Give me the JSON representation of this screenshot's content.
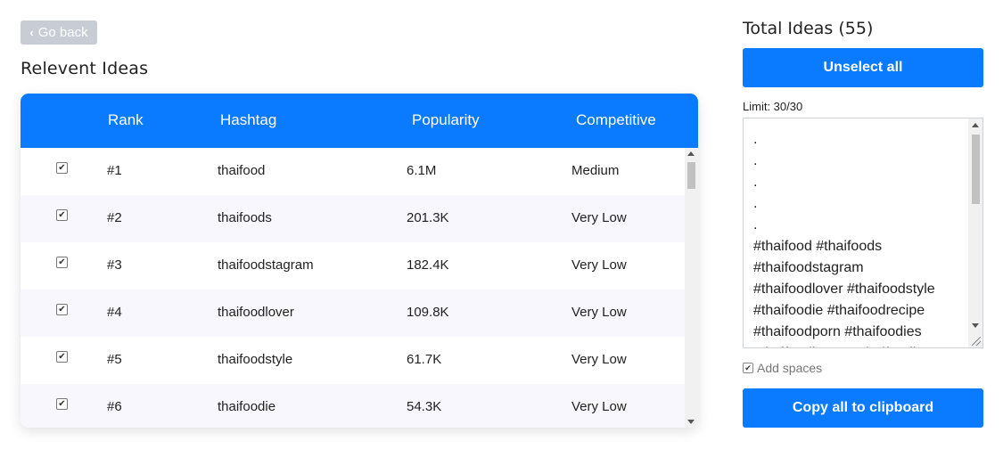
{
  "nav": {
    "go_back_label": "Go back"
  },
  "section_title": "Relevent Ideas",
  "table": {
    "columns": [
      "Rank",
      "Hashtag",
      "Popularity",
      "Competitive"
    ],
    "rows": [
      {
        "checked": true,
        "rank": "#1",
        "hashtag": "thaifood",
        "popularity": "6.1M",
        "competitive": "Medium"
      },
      {
        "checked": true,
        "rank": "#2",
        "hashtag": "thaifoods",
        "popularity": "201.3K",
        "competitive": "Very Low"
      },
      {
        "checked": true,
        "rank": "#3",
        "hashtag": "thaifoodstagram",
        "popularity": "182.4K",
        "competitive": "Very Low"
      },
      {
        "checked": true,
        "rank": "#4",
        "hashtag": "thaifoodlover",
        "popularity": "109.8K",
        "competitive": "Very Low"
      },
      {
        "checked": true,
        "rank": "#5",
        "hashtag": "thaifoodstyle",
        "popularity": "61.7K",
        "competitive": "Very Low"
      },
      {
        "checked": true,
        "rank": "#6",
        "hashtag": "thaifoodie",
        "popularity": "54.3K",
        "competitive": "Very Low"
      }
    ]
  },
  "sidebar": {
    "total_title": "Total Ideas (55)",
    "unselect_label": "Unselect all",
    "limit_label": "Limit: 30/30",
    "hashtags_text": ".\n.\n.\n.\n.\n#thaifood #thaifoods\n#thaifoodstagram\n#thaifoodlover #thaifoodstyle\n#thaifoodie #thaifoodrecipe\n#thaifoodporn #thaifoodies\n#thaifoodlovers #thaifoodl",
    "add_spaces_label": "Add spaces",
    "copy_label": "Copy all to clipboard"
  },
  "colors": {
    "accent": "#0a7aff",
    "back_button": "#c7ccd5",
    "row_alt": "#f7f7fd"
  },
  "icons": {
    "back": "chevron-left-icon",
    "check": "checkmark-icon"
  }
}
